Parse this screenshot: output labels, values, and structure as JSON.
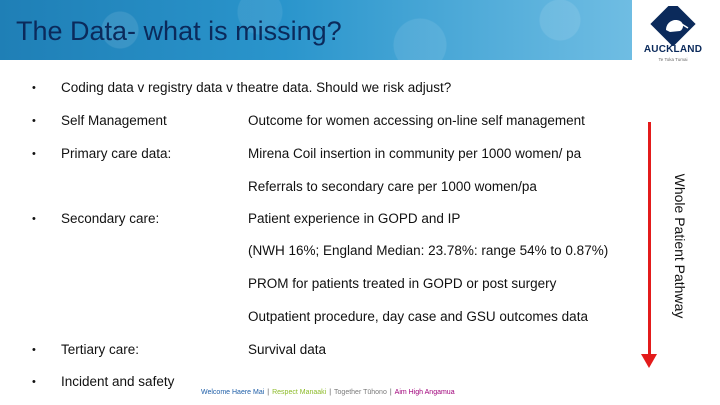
{
  "title": "The Data- what is missing?",
  "logo": {
    "wordmark": "AUCKLAND",
    "tagline": "Te Toka Tumai"
  },
  "rows": [
    {
      "bullet": "•",
      "label": "Coding data v registry data v theatre data. Should we risk adjust?",
      "detail": ""
    },
    {
      "bullet": "•",
      "label": "Self Management",
      "detail": "Outcome for women accessing on-line self management"
    },
    {
      "bullet": "•",
      "label": "Primary care data:",
      "detail": "Mirena Coil insertion in community per 1000 women/ pa"
    },
    {
      "bullet": "",
      "label": "",
      "detail": "Referrals  to secondary care per 1000 women/pa"
    },
    {
      "bullet": "•",
      "label": "Secondary care:",
      "detail": "Patient experience in GOPD and IP"
    },
    {
      "bullet": "",
      "label": "",
      "detail": "(NWH 16%; England Median: 23.78%: range 54% to 0.87%)"
    },
    {
      "bullet": "",
      "label": "",
      "detail": "PROM for patients treated in GOPD or post surgery"
    },
    {
      "bullet": "",
      "label": "",
      "detail": "Outpatient procedure, day case and GSU outcomes data"
    },
    {
      "bullet": "•",
      "label": "Tertiary care:",
      "detail": "Survival data"
    },
    {
      "bullet": "•",
      "label": "Incident and safety",
      "detail": ""
    }
  ],
  "pathway": {
    "label": "Whole Patient Pathway",
    "color": "#e31b1b"
  },
  "values_bar": {
    "v1": "Welcome  Haere Mai",
    "v2": "Respect  Manaaki",
    "v3": "Together  Tūhono",
    "v4": "Aim High  Angamua",
    "sep": "|"
  },
  "colors": {
    "title": "#0b2a5b",
    "header_start": "#1f7fb6",
    "header_end": "#6fbde3"
  }
}
